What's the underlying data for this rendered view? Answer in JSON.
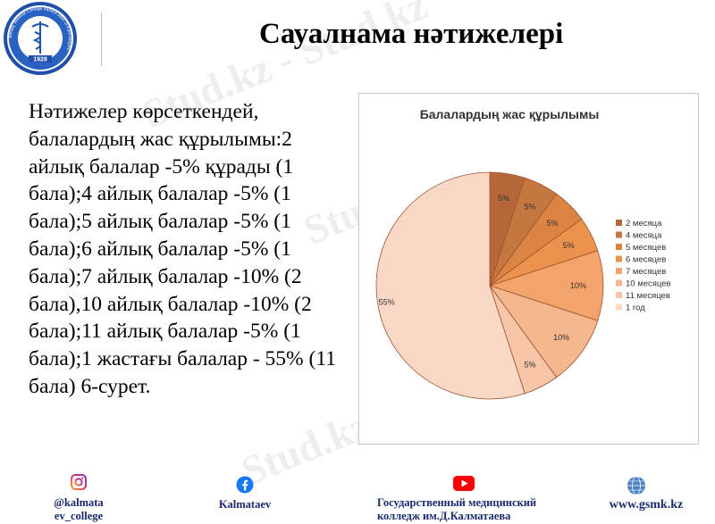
{
  "title": "Сауалнама нәтижелері",
  "body_text": "Нәтижелер көрсеткендей, балалардың жас құрылымы:2 айлық балалар -5% құрады (1 бала);4 айлық балалар -5% (1 бала);5 айлық балалар -5% (1 бала);6 айлық балалар -5% (1 бала);7 айлық балалар -10% (2 бала),10 айлық балалар -10% (2 бала);11 айлық балалар -5% (1 бала);1 жастағы балалар - 55% (11 бала) 6-сурет.",
  "logo": {
    "ring_text": "Almaty Medical College named after D.Kalmatayev",
    "year": "1928",
    "icon": "caduceus-emblem"
  },
  "watermark": "Stud.kz - Stud.kz",
  "chart_data": {
    "type": "pie",
    "title": "Балалардың жас құрылымы",
    "legend_position": "right",
    "series": [
      {
        "name": "2 месяца",
        "value": 5,
        "label": "5%",
        "color": "#b5673a"
      },
      {
        "name": "4 месяца",
        "value": 5,
        "label": "5%",
        "color": "#c4773f"
      },
      {
        "name": "5 месяцев",
        "value": 5,
        "label": "5%",
        "color": "#db8443"
      },
      {
        "name": "6 месяцев",
        "value": 5,
        "label": "5%",
        "color": "#eb924c"
      },
      {
        "name": "7 месяцев",
        "value": 10,
        "label": "10%",
        "color": "#f2a46c"
      },
      {
        "name": "10 месяцев",
        "value": 10,
        "label": "10%",
        "color": "#f5b78e"
      },
      {
        "name": "11 месяцев",
        "value": 5,
        "label": "5%",
        "color": "#f7c6a8"
      },
      {
        "name": "1 год",
        "value": 55,
        "label": "55%",
        "color": "#fad8c6"
      }
    ]
  },
  "footer": {
    "instagram": {
      "icon": "instagram-icon",
      "line1": "@kalmata",
      "line2": "ev_college"
    },
    "facebook": {
      "icon": "facebook-icon",
      "label": "Kalmataev"
    },
    "youtube": {
      "icon": "youtube-icon",
      "line1": "Государственный медицинский",
      "line2": "колледж им.Д.Калматаева"
    },
    "website": {
      "icon": "globe-icon",
      "label": "www.gsmk.kz"
    }
  }
}
